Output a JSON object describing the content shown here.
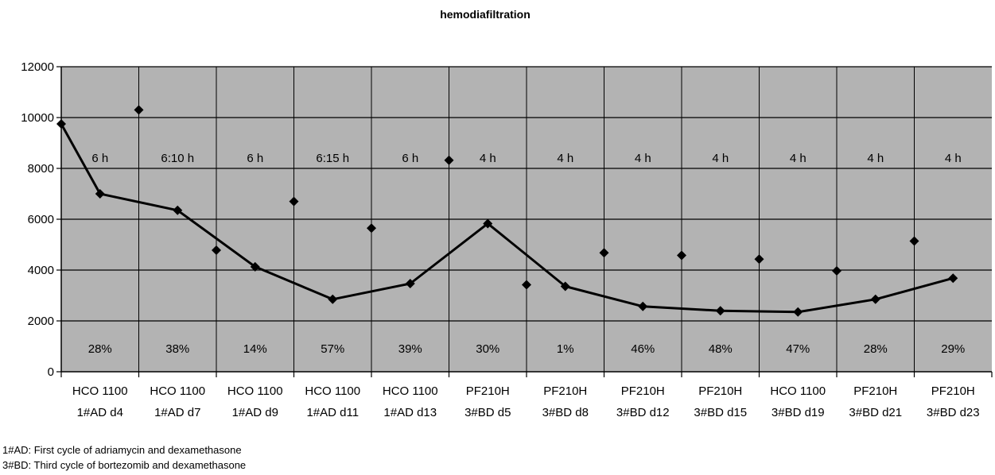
{
  "chart_data": {
    "type": "line",
    "title": "hemodiafiltration",
    "xlabel": "",
    "ylabel": "",
    "ylim": [
      0,
      12000
    ],
    "yticks": [
      "0",
      "2000",
      "4000",
      "6000",
      "8000",
      "10000",
      "12000"
    ],
    "grid": true,
    "legend": "none",
    "categories": [
      {
        "line1": "HCO 1100",
        "line2": "1#AD d4"
      },
      {
        "line1": "HCO 1100",
        "line2": "1#AD d7"
      },
      {
        "line1": "HCO 1100",
        "line2": "1#AD d9"
      },
      {
        "line1": "HCO 1100",
        "line2": "1#AD d11"
      },
      {
        "line1": "HCO 1100",
        "line2": "1#AD d13"
      },
      {
        "line1": "PF210H",
        "line2": "3#BD d5"
      },
      {
        "line1": "PF210H",
        "line2": "3#BD d8"
      },
      {
        "line1": "PF210H",
        "line2": "3#BD d12"
      },
      {
        "line1": "PF210H",
        "line2": "3#BD d15"
      },
      {
        "line1": "HCO 1100",
        "line2": "3#BD d19"
      },
      {
        "line1": "PF210H",
        "line2": "3#BD d21"
      },
      {
        "line1": "PF210H",
        "line2": "3#BD d23"
      }
    ],
    "durations": [
      "6 h",
      "6:10 h",
      "6 h",
      "6:15 h",
      "6 h",
      "4 h",
      "4 h",
      "4 h",
      "4 h",
      "4 h",
      "4 h",
      "4 h"
    ],
    "reductions": [
      "28%",
      "38%",
      "14%",
      "57%",
      "39%",
      "30%",
      "1%",
      "46%",
      "48%",
      "47%",
      "28%",
      "29%"
    ],
    "series": [
      {
        "kind": "line-with-markers",
        "points": [
          {
            "x": 0.0,
            "y": 9750
          },
          {
            "x": 0.5,
            "y": 7000
          },
          {
            "x": 1.5,
            "y": 6350
          },
          {
            "x": 2.5,
            "y": 4130
          },
          {
            "x": 3.5,
            "y": 2850
          },
          {
            "x": 4.5,
            "y": 3470
          },
          {
            "x": 5.5,
            "y": 5830
          },
          {
            "x": 6.5,
            "y": 3360
          },
          {
            "x": 7.5,
            "y": 2570
          },
          {
            "x": 8.5,
            "y": 2400
          },
          {
            "x": 9.5,
            "y": 2350
          },
          {
            "x": 10.5,
            "y": 2850
          },
          {
            "x": 11.5,
            "y": 3680
          }
        ]
      },
      {
        "kind": "markers-only",
        "points": [
          {
            "x": 1.0,
            "y": 10300
          },
          {
            "x": 2.0,
            "y": 4780
          },
          {
            "x": 3.0,
            "y": 6700
          },
          {
            "x": 4.0,
            "y": 5650
          },
          {
            "x": 5.0,
            "y": 8320
          },
          {
            "x": 6.0,
            "y": 3420
          },
          {
            "x": 7.0,
            "y": 4680
          },
          {
            "x": 8.0,
            "y": 4580
          },
          {
            "x": 9.0,
            "y": 4430
          },
          {
            "x": 10.0,
            "y": 3970
          },
          {
            "x": 11.0,
            "y": 5140
          }
        ]
      }
    ],
    "footnotes": [
      "1#AD: First cycle of adriamycin and dexamethasone",
      "3#BD: Third cycle of bortezomib and dexamethasone"
    ]
  }
}
